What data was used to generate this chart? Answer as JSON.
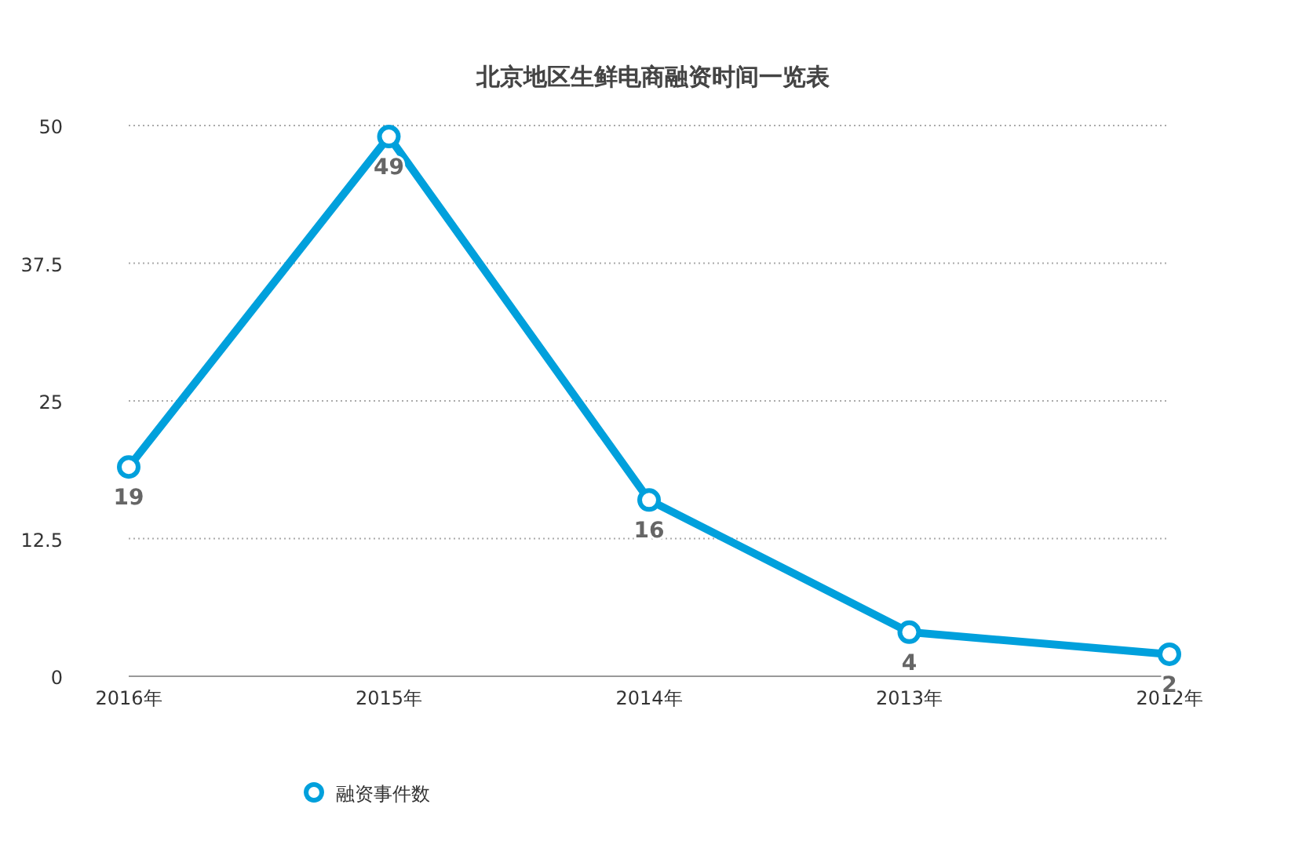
{
  "chart_data": {
    "type": "line",
    "title": "北京地区生鲜电商融资时间一览表",
    "categories": [
      "2016年",
      "2015年",
      "2014年",
      "2013年",
      "2012年"
    ],
    "series": [
      {
        "name": "融资事件数",
        "color": "#00a0dc",
        "values": [
          19,
          49,
          16,
          4,
          2
        ]
      }
    ],
    "ylim": [
      0,
      50
    ],
    "yticks": [
      0,
      12.5,
      25,
      37.5,
      50
    ],
    "grid": "y",
    "legend": "bottom left",
    "marker": "circle",
    "data_labels": true
  }
}
